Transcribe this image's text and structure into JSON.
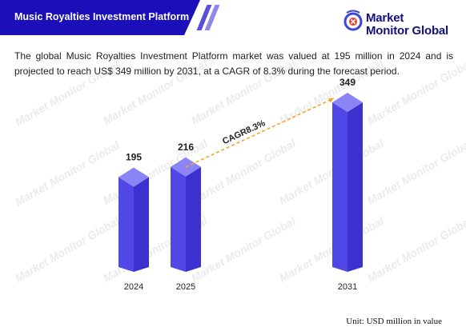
{
  "header": {
    "title": "Music Royalties Investment Platform",
    "band_color": "#1a0fb8"
  },
  "logo": {
    "line1": "Market",
    "line2": "Monitor Global",
    "icon": "market-monitor-globe-icon",
    "text_color": "#12127a"
  },
  "description": "The global Music Royalties Investment Platform market was valued at 195 million in 2024 and is projected to reach US$ 349 million by 2031, at a CAGR of 8.3% during the forecast period.",
  "watermark": "Market Monitor Global",
  "chart_data": {
    "type": "bar",
    "categories": [
      "2024",
      "2025",
      "2031"
    ],
    "values": [
      195,
      216,
      349
    ],
    "data_labels": [
      "195",
      "216",
      "349"
    ],
    "ylim": [
      0,
      349
    ],
    "grid": false,
    "bar_color": "#5b52f0",
    "annotation": {
      "text": "CAGR8.3%",
      "from": "2025",
      "to": "2031",
      "style": "dashed-arrow",
      "color": "#f5a623"
    },
    "unit_note": "Unit: USD million in value"
  }
}
